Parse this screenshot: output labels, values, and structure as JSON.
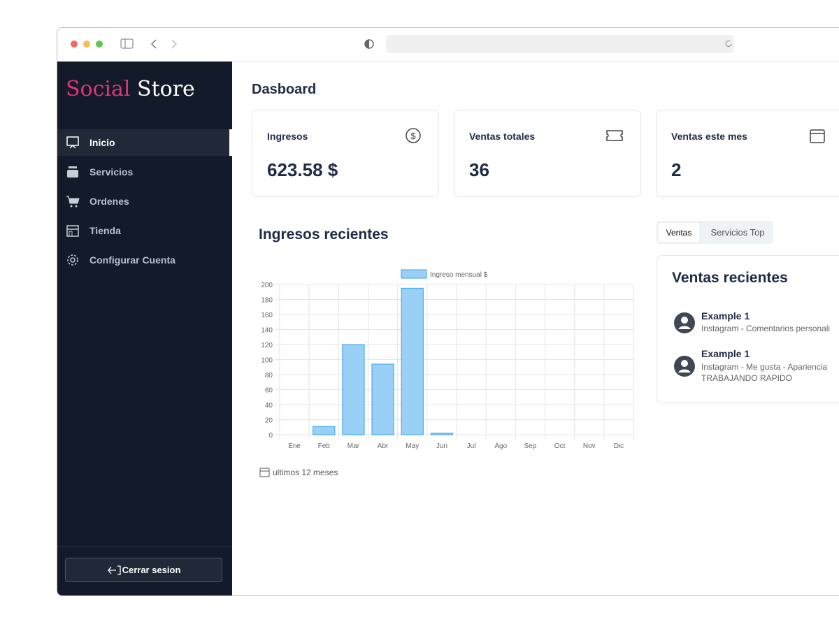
{
  "sidebar": {
    "brand": {
      "first": "Social",
      "second": "Store"
    },
    "nav": [
      "Inicio",
      "Servicios",
      "Ordenes",
      "Tienda",
      "Configurar Cuenta"
    ],
    "logout": "Cerrar sesion"
  },
  "header": {
    "title": "Dasboard"
  },
  "cards": [
    {
      "label": "Ingresos",
      "value": "623.58 $"
    },
    {
      "label": "Ventas totales",
      "value": "36"
    },
    {
      "label": "Ventas este mes",
      "value": "2"
    }
  ],
  "chart": {
    "type": "bar",
    "title": "Ingresos recientes",
    "categories": [
      "Ene",
      "Feb",
      "Mar",
      "Abr",
      "May",
      "Jun",
      "Jul",
      "Ago",
      "Sep",
      "Oct",
      "Nov",
      "Dic"
    ],
    "series": [
      {
        "name": "Ingreso mensual $",
        "color": "#9ad0f5",
        "values": [
          0,
          11,
          120,
          94,
          195,
          2,
          0,
          0,
          0,
          0,
          0,
          0
        ]
      }
    ],
    "ylim": [
      0,
      200
    ],
    "yticks": [
      0,
      20,
      40,
      60,
      80,
      100,
      120,
      140,
      160,
      180,
      200
    ],
    "grid": true,
    "legend": "top",
    "footer": "ultimos 12 meses"
  },
  "tabs": [
    "Ventas",
    "Servicios Top"
  ],
  "recent": {
    "title": "Ventas recientes",
    "items": [
      {
        "name": "Example 1",
        "desc": "Instagram - Comentarios personali"
      },
      {
        "name": "Example 1",
        "desc": "Instagram - Me gusta - Apariencia TRABAJANDO RAPIDO"
      }
    ]
  }
}
